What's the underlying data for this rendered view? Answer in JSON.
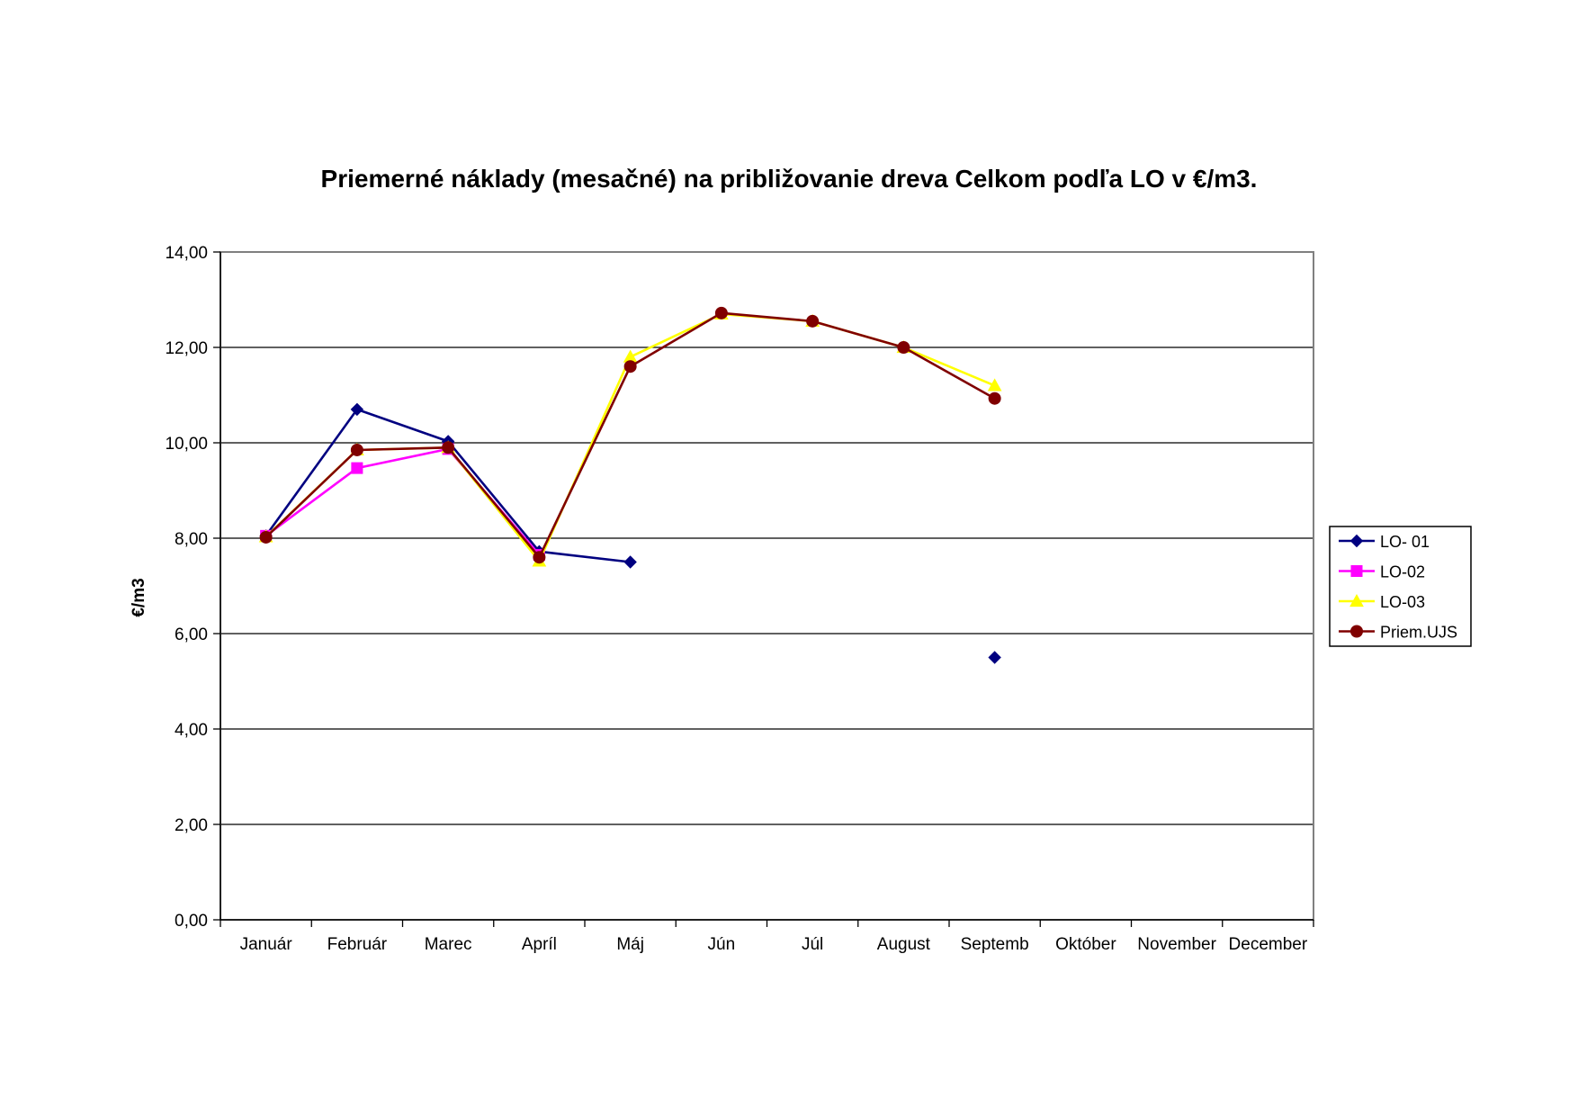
{
  "chart_data": {
    "type": "line",
    "title": "Priemerné náklady (mesačné) na približovanie dreva Celkom podľa LO v €/m3.",
    "xlabel": "",
    "ylabel": "€/m3",
    "ylim": [
      0,
      14
    ],
    "yticks": [
      "0,00",
      "2,00",
      "4,00",
      "6,00",
      "8,00",
      "10,00",
      "12,00",
      "14,00"
    ],
    "yticks_values": [
      0,
      2,
      4,
      6,
      8,
      10,
      12,
      14
    ],
    "grid": true,
    "legend_position": "right",
    "categories": [
      "Január",
      "Február",
      "Marec",
      "Apríl",
      "Máj",
      "Jún",
      "Júl",
      "August",
      "Septemb",
      "Október",
      "November",
      "December"
    ],
    "series": [
      {
        "name": "LO- 01",
        "color": "#000080",
        "marker": "diamond",
        "values": [
          8.05,
          10.7,
          10.03,
          7.72,
          7.5,
          null,
          null,
          null,
          5.5,
          null,
          null,
          null
        ]
      },
      {
        "name": "LO-02",
        "color": "#FF00FF",
        "marker": "square",
        "values": [
          8.05,
          9.47,
          9.87,
          7.65,
          null,
          null,
          null,
          null,
          null,
          null,
          null,
          null
        ]
      },
      {
        "name": "LO-03",
        "color": "#FFFF00",
        "marker": "triangle",
        "values": [
          8.03,
          9.85,
          9.9,
          7.52,
          11.8,
          12.7,
          12.55,
          12.0,
          11.2,
          null,
          null,
          null
        ]
      },
      {
        "name": "Priem.UJS",
        "color": "#800000",
        "marker": "circle",
        "values": [
          8.02,
          9.85,
          9.9,
          7.6,
          11.6,
          12.72,
          12.55,
          12.0,
          10.93,
          null,
          null,
          null
        ]
      }
    ]
  }
}
